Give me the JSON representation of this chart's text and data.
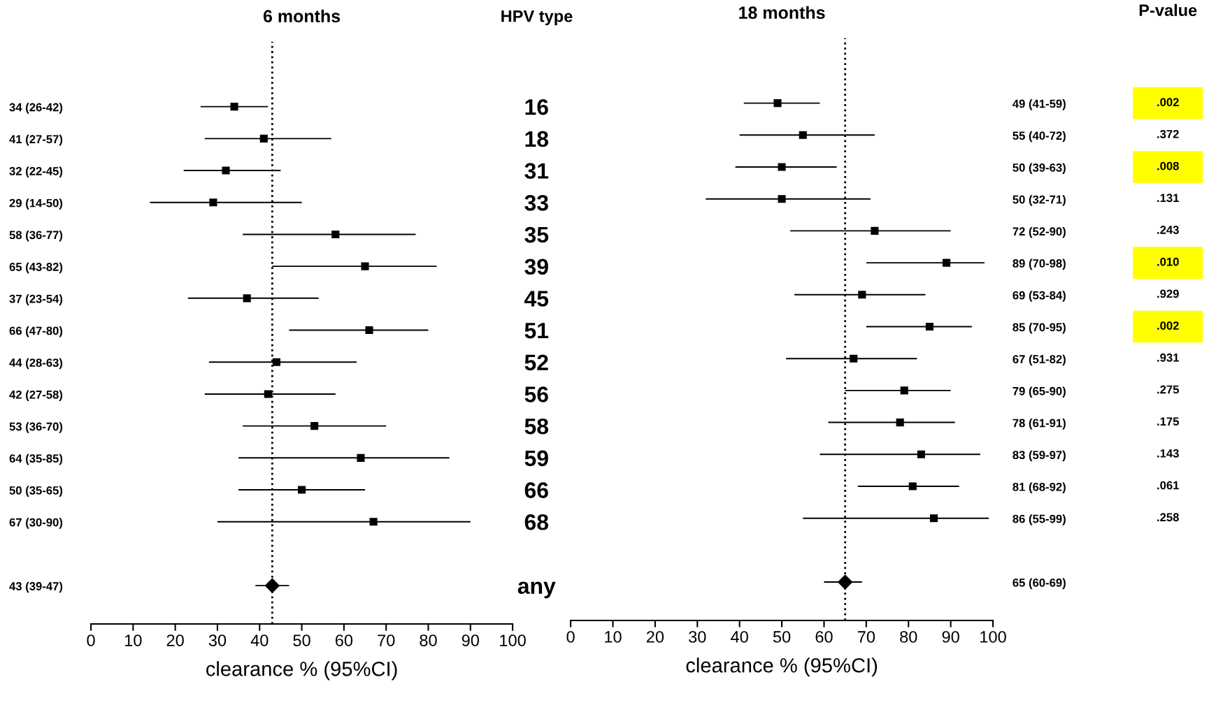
{
  "chart_data": [
    {
      "type": "scatter",
      "orientation": "horizontal",
      "title": "6 months",
      "ylabel": "HPV type",
      "xlabel": "clearance % (95%CI)",
      "categories": [
        "16",
        "18",
        "31",
        "33",
        "35",
        "39",
        "45",
        "51",
        "52",
        "56",
        "58",
        "59",
        "66",
        "68",
        null,
        "any"
      ],
      "xlim": [
        0,
        100
      ],
      "xticks": [
        0,
        10,
        20,
        30,
        40,
        50,
        60,
        70,
        80,
        90,
        100
      ],
      "grid": false,
      "legend": false,
      "ref_lines": [
        {
          "axis": "x",
          "value": 43,
          "color": "#000000",
          "line_style": "dotted"
        }
      ],
      "series": [
        {
          "color": "#000000",
          "marker": "square",
          "values": [
            34,
            41,
            32,
            29,
            58,
            65,
            37,
            66,
            44,
            42,
            53,
            64,
            50,
            67,
            null,
            null
          ],
          "errors": [
            [
              26,
              42
            ],
            [
              27,
              57
            ],
            [
              22,
              45
            ],
            [
              14,
              50
            ],
            [
              36,
              77
            ],
            [
              43,
              82
            ],
            [
              23,
              54
            ],
            [
              47,
              80
            ],
            [
              28,
              63
            ],
            [
              27,
              58
            ],
            [
              36,
              70
            ],
            [
              35,
              85
            ],
            [
              35,
              65
            ],
            [
              30,
              90
            ],
            null,
            null
          ],
          "value_labels": [
            "34 (26-42)",
            "41 (27-57)",
            "32 (22-45)",
            "29 (14-50)",
            "58 (36-77)",
            "65 (43-82)",
            "37 (23-54)",
            "66 (47-80)",
            "44 (28-63)",
            "42 (27-58)",
            "53 (36-70)",
            "64 (35-85)",
            "50 (35-65)",
            "67 (30-90)",
            null,
            "43 (39-47)"
          ]
        },
        {
          "color": "#000000",
          "marker": "diamond",
          "values": [
            null,
            null,
            null,
            null,
            null,
            null,
            null,
            null,
            null,
            null,
            null,
            null,
            null,
            null,
            null,
            43
          ],
          "errors": [
            null,
            null,
            null,
            null,
            null,
            null,
            null,
            null,
            null,
            null,
            null,
            null,
            null,
            null,
            null,
            [
              39,
              47
            ]
          ]
        }
      ]
    },
    {
      "type": "scatter",
      "orientation": "horizontal",
      "title": "18 months",
      "xlabel": "clearance % (95%CI)",
      "tick_labels": "x",
      "categories": [
        null,
        null,
        null,
        null,
        null,
        null,
        null,
        null,
        null,
        null,
        null,
        null,
        null,
        null,
        null,
        null
      ],
      "xlim": [
        0,
        100
      ],
      "xticks": [
        0,
        10,
        20,
        30,
        40,
        50,
        60,
        70,
        80,
        90,
        100
      ],
      "grid": false,
      "legend": false,
      "ref_lines": [
        {
          "axis": "x",
          "value": 65,
          "color": "#000000",
          "line_style": "dotted"
        }
      ],
      "series": [
        {
          "color": "#000000",
          "marker": "square",
          "values": [
            49,
            55,
            50,
            50,
            72,
            89,
            69,
            85,
            67,
            79,
            78,
            83,
            81,
            86,
            null,
            null
          ],
          "errors": [
            [
              41,
              59
            ],
            [
              40,
              72
            ],
            [
              39,
              63
            ],
            [
              32,
              71
            ],
            [
              52,
              90
            ],
            [
              70,
              98
            ],
            [
              53,
              84
            ],
            [
              70,
              95
            ],
            [
              51,
              82
            ],
            [
              65,
              90
            ],
            [
              61,
              91
            ],
            [
              59,
              97
            ],
            [
              68,
              92
            ],
            [
              55,
              99
            ],
            null,
            null
          ],
          "value_labels": [
            "49 (41-59)",
            "55 (40-72)",
            "50 (39-63)",
            "50 (32-71)",
            "72 (52-90)",
            "89 (70-98)",
            "69 (53-84)",
            "85 (70-95)",
            "67 (51-82)",
            "79 (65-90)",
            "78 (61-91)",
            "83 (59-97)",
            "81 (68-92)",
            "86 (55-99)",
            null,
            "65 (60-69)"
          ]
        },
        {
          "color": "#000000",
          "marker": "diamond",
          "values": [
            null,
            null,
            null,
            null,
            null,
            null,
            null,
            null,
            null,
            null,
            null,
            null,
            null,
            null,
            null,
            65
          ],
          "errors": [
            null,
            null,
            null,
            null,
            null,
            null,
            null,
            null,
            null,
            null,
            null,
            null,
            null,
            null,
            null,
            [
              60,
              69
            ]
          ]
        }
      ]
    },
    {
      "type": "other",
      "title": "P-value",
      "value_labels": [
        ".002",
        ".372",
        ".008",
        ".131",
        ".243",
        ".010",
        ".929",
        ".002",
        ".931",
        ".275",
        ".175",
        ".143",
        ".061",
        ".258",
        null,
        null
      ],
      "colors": [
        "#ffff00",
        null,
        "#ffff00",
        null,
        null,
        "#ffff00",
        null,
        "#ffff00",
        null,
        null,
        null,
        null,
        null,
        null,
        null,
        null
      ]
    }
  ]
}
